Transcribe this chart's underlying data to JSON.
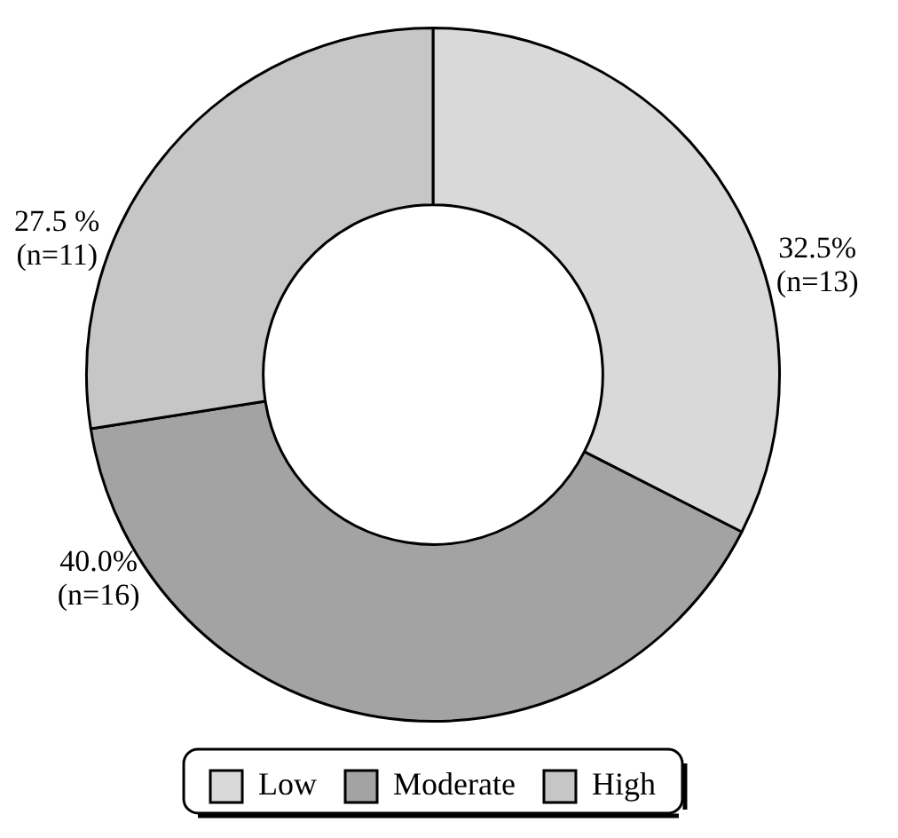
{
  "chart_data": {
    "type": "donut",
    "categories": [
      "Low",
      "Moderate",
      "High"
    ],
    "values": [
      32.5,
      40.0,
      27.5
    ],
    "colors": [
      "#d9d9d9",
      "#a3a3a3",
      "#c6c6c6"
    ],
    "value_labels": [
      "32.5%\n(n=13)",
      "40.0%\n(n=16)",
      "27.5 %\n(n=11)"
    ],
    "legend": "bottom"
  }
}
